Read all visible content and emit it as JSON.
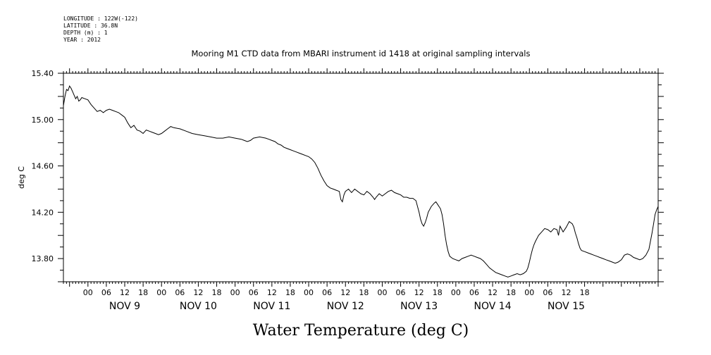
{
  "meta": {
    "longitude": "LONGITUDE : 122W(-122)",
    "latitude": "LATITUDE : 36.8N",
    "depth": "DEPTH (m) : 1",
    "year": "YEAR : 2012"
  },
  "chart_data": {
    "type": "line",
    "title": "Mooring M1 CTD data from MBARI instrument id 1418 at original sampling intervals",
    "xlabel": "Water Temperature (deg C)",
    "ylabel": "deg C",
    "ylim": [
      13.6,
      15.4
    ],
    "yticks": [
      "15.40",
      "15.00",
      "14.60",
      "14.20",
      "13.80"
    ],
    "xlim": [
      -8,
      186
    ],
    "hour_ticks": [
      "00",
      "06",
      "12",
      "18",
      "00",
      "06",
      "12",
      "18",
      "00",
      "06",
      "12",
      "18",
      "00",
      "06",
      "12",
      "18",
      "00",
      "06",
      "12",
      "18",
      "00",
      "06",
      "12",
      "18",
      "00",
      "06",
      "12",
      "18"
    ],
    "day_labels": [
      "NOV  9",
      "NOV 10",
      "NOV 11",
      "NOV 12",
      "NOV 13",
      "NOV 14",
      "NOV 15"
    ],
    "grid": false,
    "series": [
      {
        "color": "#000000",
        "points": [
          [
            -8,
            15.12
          ],
          [
            -7.5,
            15.2
          ],
          [
            -7,
            15.26
          ],
          [
            -6.5,
            15.25
          ],
          [
            -6,
            15.29
          ],
          [
            -5.5,
            15.27
          ],
          [
            -5,
            15.24
          ],
          [
            -4.5,
            15.21
          ],
          [
            -4,
            15.18
          ],
          [
            -3.5,
            15.2
          ],
          [
            -3,
            15.16
          ],
          [
            -2.5,
            15.17
          ],
          [
            -2,
            15.19
          ],
          [
            -1,
            15.18
          ],
          [
            0,
            15.17
          ],
          [
            1,
            15.13
          ],
          [
            2,
            15.1
          ],
          [
            3,
            15.07
          ],
          [
            4,
            15.08
          ],
          [
            5,
            15.06
          ],
          [
            6,
            15.08
          ],
          [
            7,
            15.09
          ],
          [
            8,
            15.08
          ],
          [
            9,
            15.07
          ],
          [
            10,
            15.06
          ],
          [
            11,
            15.04
          ],
          [
            12,
            15.02
          ],
          [
            13,
            14.97
          ],
          [
            14,
            14.93
          ],
          [
            15,
            14.95
          ],
          [
            16,
            14.91
          ],
          [
            17,
            14.9
          ],
          [
            18,
            14.88
          ],
          [
            19,
            14.91
          ],
          [
            20,
            14.9
          ],
          [
            21,
            14.89
          ],
          [
            22,
            14.88
          ],
          [
            23,
            14.87
          ],
          [
            24,
            14.88
          ],
          [
            25,
            14.9
          ],
          [
            26,
            14.92
          ],
          [
            27,
            14.94
          ],
          [
            28,
            14.93
          ],
          [
            30,
            14.92
          ],
          [
            32,
            14.9
          ],
          [
            34,
            14.88
          ],
          [
            36,
            14.87
          ],
          [
            38,
            14.86
          ],
          [
            40,
            14.85
          ],
          [
            42,
            14.84
          ],
          [
            44,
            14.84
          ],
          [
            46,
            14.85
          ],
          [
            48,
            14.84
          ],
          [
            50,
            14.83
          ],
          [
            51,
            14.82
          ],
          [
            52,
            14.81
          ],
          [
            53,
            14.82
          ],
          [
            54,
            14.84
          ],
          [
            56,
            14.85
          ],
          [
            58,
            14.84
          ],
          [
            59,
            14.83
          ],
          [
            60,
            14.82
          ],
          [
            61,
            14.81
          ],
          [
            62,
            14.79
          ],
          [
            63,
            14.78
          ],
          [
            64,
            14.76
          ],
          [
            65,
            14.75
          ],
          [
            66,
            14.74
          ],
          [
            67,
            14.73
          ],
          [
            68,
            14.72
          ],
          [
            69,
            14.71
          ],
          [
            70,
            14.7
          ],
          [
            71,
            14.69
          ],
          [
            72,
            14.68
          ],
          [
            73,
            14.66
          ],
          [
            74,
            14.63
          ],
          [
            75,
            14.58
          ],
          [
            76,
            14.52
          ],
          [
            77,
            14.47
          ],
          [
            78,
            14.43
          ],
          [
            79,
            14.41
          ],
          [
            80,
            14.4
          ],
          [
            81,
            14.39
          ],
          [
            82,
            14.38
          ],
          [
            82.5,
            14.31
          ],
          [
            83,
            14.29
          ],
          [
            83.5,
            14.35
          ],
          [
            84,
            14.38
          ],
          [
            85,
            14.4
          ],
          [
            86,
            14.37
          ],
          [
            87,
            14.4
          ],
          [
            88,
            14.38
          ],
          [
            89,
            14.36
          ],
          [
            90,
            14.35
          ],
          [
            91,
            14.38
          ],
          [
            92,
            14.36
          ],
          [
            93,
            14.33
          ],
          [
            93.5,
            14.31
          ],
          [
            94,
            14.33
          ],
          [
            95,
            14.36
          ],
          [
            96,
            14.34
          ],
          [
            97,
            14.36
          ],
          [
            98,
            14.38
          ],
          [
            99,
            14.39
          ],
          [
            100,
            14.37
          ],
          [
            101,
            14.36
          ],
          [
            102,
            14.35
          ],
          [
            103,
            14.33
          ],
          [
            104,
            14.33
          ],
          [
            105,
            14.32
          ],
          [
            106,
            14.32
          ],
          [
            107,
            14.3
          ],
          [
            107.5,
            14.25
          ],
          [
            108,
            14.2
          ],
          [
            108.5,
            14.14
          ],
          [
            109,
            14.1
          ],
          [
            109.5,
            14.08
          ],
          [
            110,
            14.11
          ],
          [
            110.5,
            14.15
          ],
          [
            111,
            14.2
          ],
          [
            112,
            14.25
          ],
          [
            113,
            14.28
          ],
          [
            113.5,
            14.29
          ],
          [
            114,
            14.27
          ],
          [
            115,
            14.23
          ],
          [
            115.5,
            14.18
          ],
          [
            116,
            14.1
          ],
          [
            116.5,
            14.0
          ],
          [
            117,
            13.92
          ],
          [
            117.5,
            13.86
          ],
          [
            118,
            13.82
          ],
          [
            119,
            13.8
          ],
          [
            120,
            13.79
          ],
          [
            121,
            13.78
          ],
          [
            122,
            13.8
          ],
          [
            123,
            13.81
          ],
          [
            124,
            13.82
          ],
          [
            125,
            13.83
          ],
          [
            126,
            13.82
          ],
          [
            127,
            13.81
          ],
          [
            128,
            13.8
          ],
          [
            129,
            13.78
          ],
          [
            130,
            13.75
          ],
          [
            131,
            13.72
          ],
          [
            132,
            13.7
          ],
          [
            133,
            13.68
          ],
          [
            134,
            13.67
          ],
          [
            135,
            13.66
          ],
          [
            136,
            13.65
          ],
          [
            137,
            13.64
          ],
          [
            138,
            13.65
          ],
          [
            139,
            13.66
          ],
          [
            140,
            13.67
          ],
          [
            141,
            13.66
          ],
          [
            142,
            13.67
          ],
          [
            143,
            13.69
          ],
          [
            143.5,
            13.72
          ],
          [
            144,
            13.77
          ],
          [
            144.5,
            13.83
          ],
          [
            145,
            13.88
          ],
          [
            145.5,
            13.92
          ],
          [
            146,
            13.95
          ],
          [
            147,
            14.0
          ],
          [
            148,
            14.03
          ],
          [
            149,
            14.06
          ],
          [
            150,
            14.05
          ],
          [
            151,
            14.03
          ],
          [
            152,
            14.06
          ],
          [
            153,
            14.05
          ],
          [
            153.5,
            14.0
          ],
          [
            154,
            14.08
          ],
          [
            155,
            14.03
          ],
          [
            156,
            14.07
          ],
          [
            157,
            14.12
          ],
          [
            158,
            14.1
          ],
          [
            158.5,
            14.07
          ],
          [
            159,
            14.02
          ],
          [
            159.5,
            13.98
          ],
          [
            160,
            13.93
          ],
          [
            160.5,
            13.89
          ],
          [
            161,
            13.87
          ],
          [
            162,
            13.86
          ],
          [
            163,
            13.85
          ],
          [
            164,
            13.84
          ],
          [
            165,
            13.83
          ],
          [
            166,
            13.82
          ],
          [
            167,
            13.81
          ],
          [
            168,
            13.8
          ],
          [
            169,
            13.79
          ],
          [
            170,
            13.78
          ],
          [
            171,
            13.77
          ],
          [
            172,
            13.76
          ],
          [
            173,
            13.77
          ],
          [
            174,
            13.79
          ],
          [
            175,
            13.83
          ],
          [
            176,
            13.84
          ],
          [
            177,
            13.83
          ],
          [
            178,
            13.81
          ],
          [
            179,
            13.8
          ],
          [
            180,
            13.79
          ],
          [
            181,
            13.8
          ],
          [
            182,
            13.83
          ],
          [
            183,
            13.88
          ],
          [
            183.5,
            13.95
          ],
          [
            184,
            14.02
          ],
          [
            184.5,
            14.1
          ],
          [
            185,
            14.18
          ],
          [
            185.5,
            14.22
          ],
          [
            186,
            14.25
          ]
        ]
      }
    ]
  }
}
